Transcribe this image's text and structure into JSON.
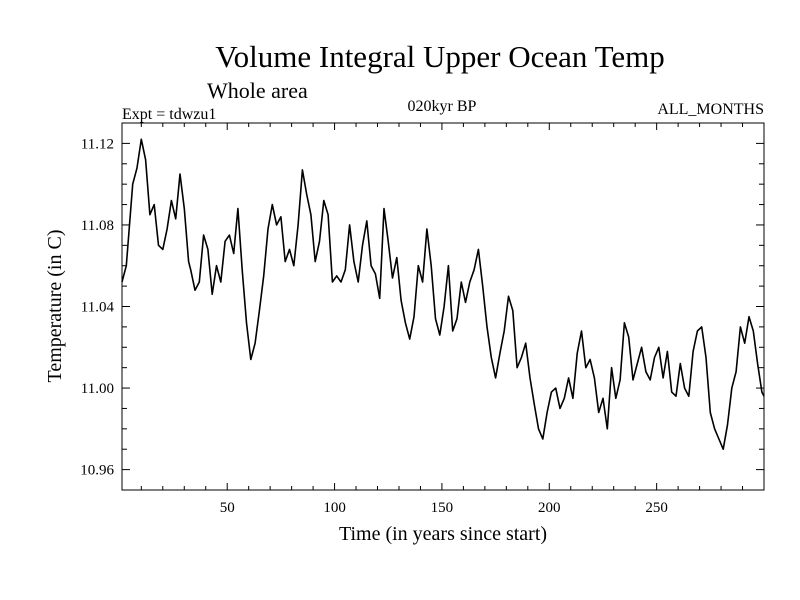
{
  "chart_data": {
    "type": "line",
    "title": "Volume Integral Upper Ocean Temp",
    "subtitle": "Whole area",
    "annotations": {
      "left": "Expt = tdwzu1",
      "center": "020kyr BP",
      "right": "ALL_MONTHS"
    },
    "xlabel": "Time (in years since start)",
    "ylabel": "Temperature (in C)",
    "xlim": [
      1,
      300
    ],
    "ylim": [
      10.95,
      11.13
    ],
    "xticks": [
      50,
      100,
      150,
      200,
      250
    ],
    "xtick_labels": [
      "50",
      "100",
      "150",
      "200",
      "250"
    ],
    "yticks": [
      10.96,
      11.0,
      11.04,
      11.08,
      11.12
    ],
    "ytick_labels": [
      "10.96",
      "11.00",
      "11.04",
      "11.08",
      "11.12"
    ],
    "series": [
      {
        "name": "Temperature",
        "x": [
          1,
          3,
          6,
          8,
          10,
          12,
          14,
          16,
          18,
          20,
          22,
          24,
          26,
          28,
          30,
          32,
          33,
          35,
          37,
          39,
          41,
          43,
          45,
          47,
          49,
          51,
          53,
          55,
          57,
          59,
          61,
          63,
          65,
          67,
          69,
          71,
          73,
          75,
          77,
          79,
          81,
          83,
          85,
          87,
          89,
          91,
          93,
          95,
          97,
          99,
          101,
          103,
          105,
          107,
          109,
          111,
          113,
          115,
          117,
          119,
          121,
          123,
          125,
          127,
          129,
          131,
          133,
          135,
          137,
          139,
          141,
          143,
          145,
          147,
          149,
          151,
          153,
          155,
          157,
          159,
          161,
          163,
          165,
          167,
          169,
          171,
          173,
          175,
          177,
          179,
          181,
          183,
          185,
          187,
          189,
          191,
          193,
          195,
          197,
          199,
          201,
          203,
          205,
          207,
          209,
          211,
          213,
          215,
          217,
          219,
          221,
          223,
          225,
          227,
          229,
          231,
          233,
          235,
          237,
          239,
          241,
          243,
          245,
          247,
          249,
          251,
          253,
          255,
          257,
          259,
          261,
          263,
          265,
          267,
          269,
          271,
          273,
          275,
          277,
          279,
          281,
          283,
          285,
          287,
          289,
          291,
          293,
          295,
          297,
          299,
          300
        ],
        "values": [
          11.052,
          11.06,
          11.1,
          11.108,
          11.122,
          11.112,
          11.085,
          11.09,
          11.07,
          11.068,
          11.078,
          11.092,
          11.083,
          11.105,
          11.088,
          11.062,
          11.058,
          11.048,
          11.052,
          11.075,
          11.068,
          11.046,
          11.06,
          11.052,
          11.072,
          11.075,
          11.066,
          11.088,
          11.058,
          11.032,
          11.014,
          11.022,
          11.038,
          11.055,
          11.078,
          11.09,
          11.08,
          11.084,
          11.062,
          11.068,
          11.06,
          11.08,
          11.107,
          11.095,
          11.085,
          11.062,
          11.072,
          11.092,
          11.085,
          11.052,
          11.055,
          11.052,
          11.058,
          11.08,
          11.062,
          11.052,
          11.07,
          11.082,
          11.06,
          11.056,
          11.044,
          11.088,
          11.072,
          11.054,
          11.064,
          11.043,
          11.032,
          11.024,
          11.035,
          11.06,
          11.052,
          11.078,
          11.06,
          11.034,
          11.026,
          11.04,
          11.06,
          11.028,
          11.034,
          11.052,
          11.042,
          11.052,
          11.058,
          11.068,
          11.05,
          11.03,
          11.015,
          11.005,
          11.017,
          11.028,
          11.045,
          11.038,
          11.01,
          11.015,
          11.022,
          11.005,
          10.992,
          10.98,
          10.975,
          10.988,
          10.998,
          11.0,
          10.99,
          10.995,
          11.005,
          10.995,
          11.017,
          11.028,
          11.01,
          11.014,
          11.005,
          10.988,
          10.995,
          10.98,
          11.01,
          10.995,
          11.004,
          11.032,
          11.025,
          11.004,
          11.012,
          11.02,
          11.008,
          11.004,
          11.015,
          11.02,
          11.005,
          11.018,
          10.998,
          10.996,
          11.012,
          11.0,
          10.996,
          11.018,
          11.028,
          11.03,
          11.015,
          10.988,
          10.98,
          10.975,
          10.97,
          10.982,
          11.0,
          11.008,
          11.03,
          11.022,
          11.035,
          11.028,
          11.012,
          10.998,
          10.996
        ]
      }
    ]
  }
}
